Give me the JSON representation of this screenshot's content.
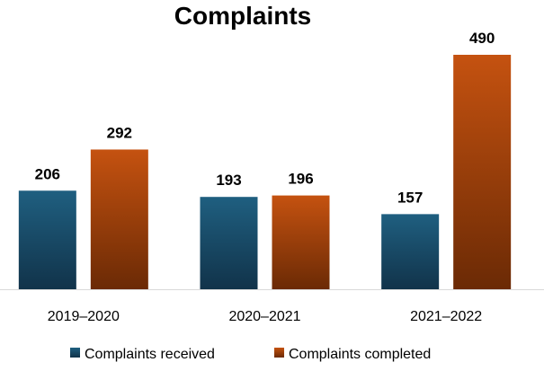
{
  "chart_data": {
    "type": "bar",
    "title": "Complaints",
    "categories": [
      "2019–2020",
      "2020–2021",
      "2021–2022"
    ],
    "series": [
      {
        "name": "Complaints received",
        "values": [
          206,
          193,
          157
        ],
        "color": "#1f5a7a"
      },
      {
        "name": "Complaints completed",
        "values": [
          292,
          196,
          490
        ],
        "color": "#b84a0c"
      }
    ],
    "ylim": [
      0,
      490
    ],
    "grid": false,
    "legend": "bottom",
    "data_labels": true
  }
}
